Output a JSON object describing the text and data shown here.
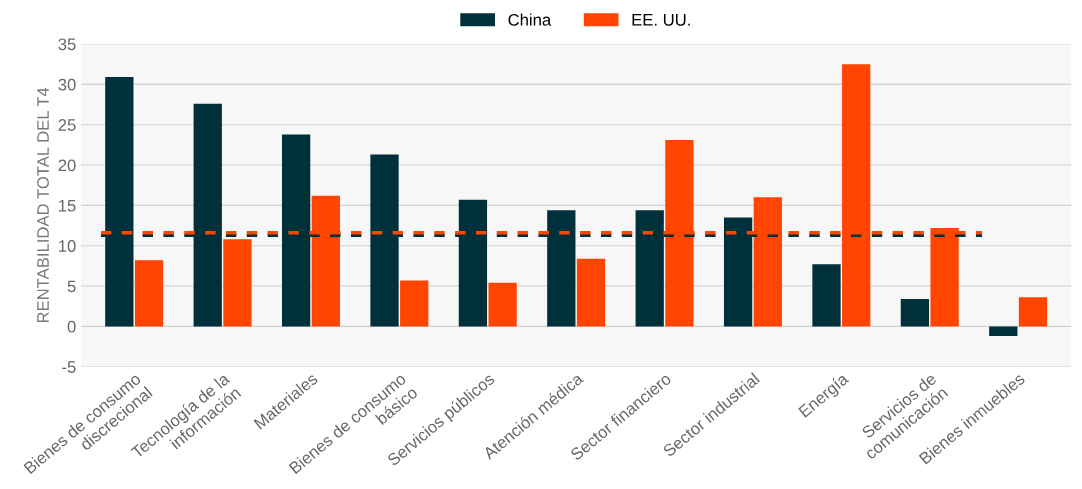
{
  "chart_data": {
    "type": "bar",
    "ylabel": "RENTABILIDAD TOTAL DEL T4",
    "categories": [
      "Bienes de consumo discrecional",
      "Tecnología de la información",
      "Materiales",
      "Bienes de consumo básico",
      "Servicios públicos",
      "Atención médica",
      "Sector financiero",
      "Sector industrial",
      "Energía",
      "Servicios de comunicación",
      "Bienes inmuebles"
    ],
    "series": [
      {
        "name": "China",
        "color": "#00313a",
        "values": [
          30.9,
          27.6,
          23.8,
          21.3,
          15.7,
          14.4,
          14.4,
          13.5,
          7.7,
          3.4,
          -1.2
        ]
      },
      {
        "name": "EE. UU.",
        "color": "#ff4500",
        "values": [
          8.2,
          10.8,
          16.2,
          5.7,
          5.4,
          8.4,
          23.1,
          16.0,
          32.5,
          12.2,
          3.6
        ]
      }
    ],
    "ref_lines": [
      {
        "axis": "y",
        "value": 11.3,
        "color": "#00313a",
        "line_style": "dashed"
      },
      {
        "axis": "y",
        "value": 11.6,
        "color": "#ff4500",
        "line_style": "dashed"
      }
    ],
    "ylim": [
      -5,
      35
    ],
    "yticks": [
      -5,
      0,
      5,
      10,
      15,
      20,
      25,
      30,
      35
    ],
    "grid": "y",
    "legend": "top"
  }
}
